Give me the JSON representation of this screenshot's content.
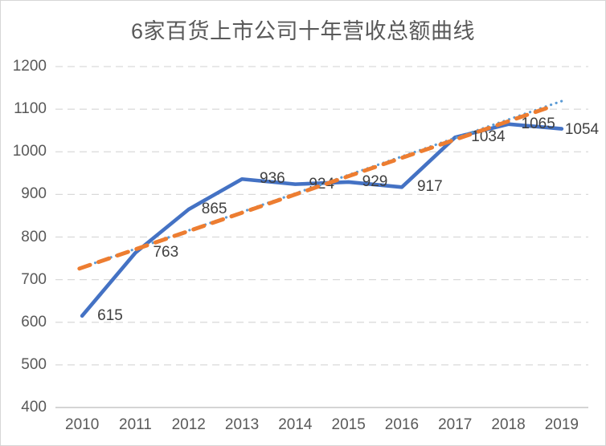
{
  "chart_data": {
    "type": "line",
    "title": "6家百货上市公司十年营收总额曲线",
    "categories": [
      "2010",
      "2011",
      "2012",
      "2013",
      "2014",
      "2015",
      "2016",
      "2017",
      "2018",
      "2019"
    ],
    "series": [
      {
        "values": [
          615,
          763,
          865,
          936,
          924,
          929,
          917,
          1034,
          1065,
          1054
        ],
        "color": "#4472C4",
        "style": "solid"
      }
    ],
    "data_labels": [
      "615",
      "763",
      "865",
      "936",
      "924",
      "929",
      "917",
      "1034",
      "1065",
      "1054"
    ],
    "trendlines": [
      {
        "name": "trendline-dotted",
        "color": "#5B9BD5",
        "style": "dotted",
        "from_index": 0.05,
        "to_index": 9.0,
        "from_value": 731,
        "to_value": 1119
      },
      {
        "name": "trendline-dashed",
        "color": "#ED7D31",
        "style": "dashed",
        "from_index": -0.05,
        "to_index": 8.8,
        "from_value": 726,
        "to_value": 1106
      }
    ],
    "ylim": [
      400,
      1200
    ],
    "ytick_step": 100,
    "yticks": [
      "1200",
      "1100",
      "1000",
      "900",
      "800",
      "700",
      "600",
      "500",
      "400"
    ],
    "grid": true,
    "legend_position": "none",
    "colors": {
      "gridline": "#D9D9D9",
      "axis_line": "#C6C6C6",
      "axis_text": "#595959",
      "label_text": "#404040",
      "title_text": "#595959"
    }
  }
}
